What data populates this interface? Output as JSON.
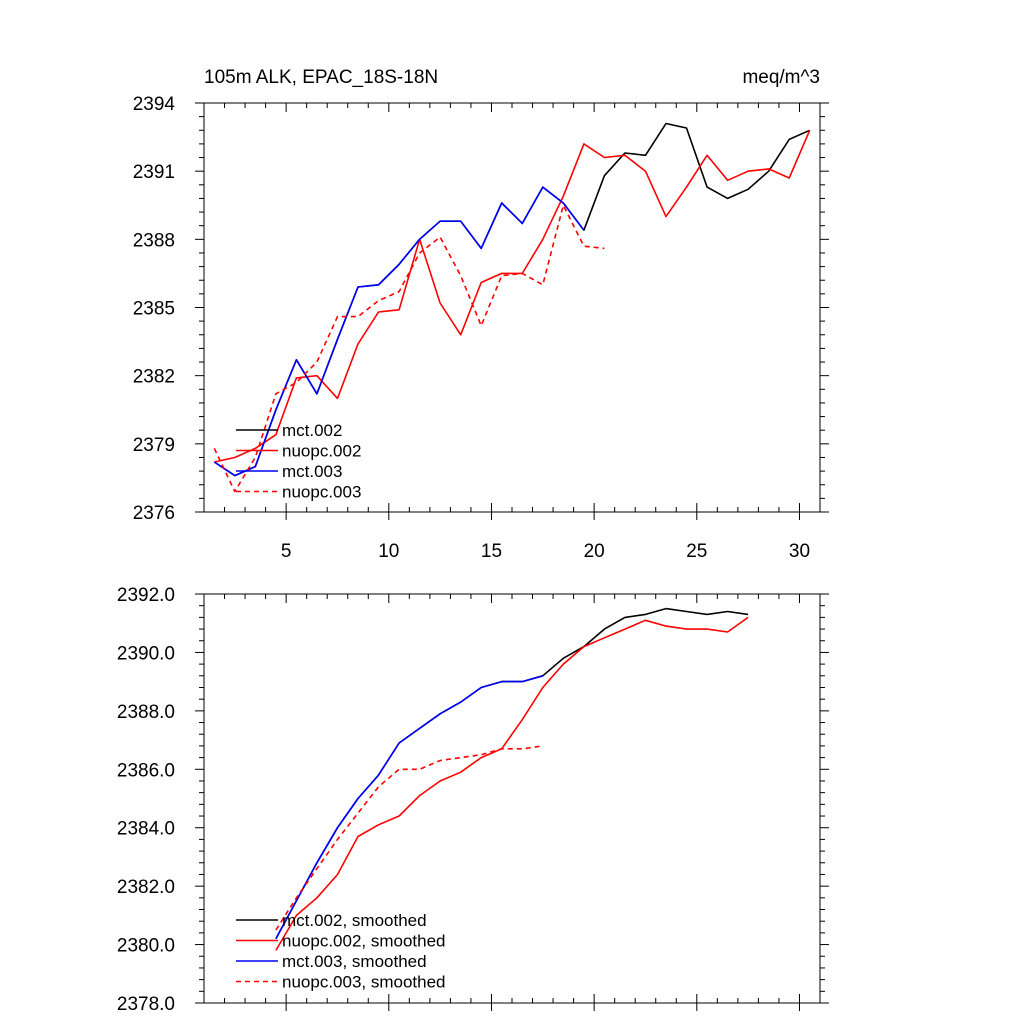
{
  "chart_data": [
    {
      "type": "line",
      "title": "105m ALK, EPAC_18S-18N",
      "units": "meq/m^3",
      "xlim": [
        1,
        31
      ],
      "ylim": [
        2376,
        2394
      ],
      "x_ticks": [
        5,
        10,
        15,
        20,
        25,
        30
      ],
      "y_ticks": [
        2376,
        2379,
        2382,
        2385,
        2388,
        2391,
        2394
      ],
      "y_tick_labels": [
        "2376",
        "2379",
        "2382",
        "2385",
        "2388",
        "2391",
        "2394"
      ],
      "legend_position": "bottom-left",
      "grid": false,
      "series": [
        {
          "name": "mct.002",
          "color": "#000000",
          "dash": "solid",
          "x": [
            1.5,
            2.5,
            3.5,
            4.5,
            5.5,
            6.5,
            7.5,
            8.5,
            9.5,
            10.5,
            11.5,
            12.5,
            13.5,
            14.5,
            15.5,
            16.5,
            17.5,
            18.5,
            19.5,
            20.5,
            21.5,
            22.5,
            23.5,
            24.5,
            25.5,
            26.5,
            27.5,
            28.5,
            29.5,
            30.5
          ],
          "values": [
            2378.2,
            2377.6,
            2378.0,
            2380.5,
            2382.7,
            2381.2,
            2383.6,
            2385.9,
            2386.0,
            2386.9,
            2388.0,
            2388.8,
            2388.8,
            2387.6,
            2389.6,
            2388.7,
            2390.3,
            2389.6,
            2388.4,
            2390.8,
            2391.8,
            2391.7,
            2393.1,
            2392.9,
            2390.3,
            2389.8,
            2390.2,
            2391.0,
            2392.4,
            2392.8
          ]
        },
        {
          "name": "nuopc.002",
          "color": "#ff0000",
          "dash": "solid",
          "x": [
            1.5,
            2.5,
            3.5,
            4.5,
            5.5,
            6.5,
            7.5,
            8.5,
            9.5,
            10.5,
            11.5,
            12.5,
            13.5,
            14.5,
            15.5,
            16.5,
            17.5,
            18.5,
            19.5,
            20.5,
            21.5,
            22.5,
            23.5,
            24.5,
            25.5,
            26.5,
            27.5,
            28.5,
            29.5,
            30.5
          ],
          "values": [
            2378.2,
            2378.4,
            2378.8,
            2379.4,
            2381.9,
            2382.0,
            2381.0,
            2383.4,
            2384.8,
            2384.9,
            2388.0,
            2385.2,
            2383.8,
            2386.1,
            2386.5,
            2386.5,
            2388.0,
            2389.9,
            2392.2,
            2391.6,
            2391.7,
            2391.0,
            2389.0,
            2390.3,
            2391.7,
            2390.6,
            2391.0,
            2391.1,
            2390.7,
            2392.8
          ]
        },
        {
          "name": "mct.003",
          "color": "#0000ff",
          "dash": "solid",
          "x": [
            1.5,
            2.5,
            3.5,
            4.5,
            5.5,
            6.5,
            7.5,
            8.5,
            9.5,
            10.5,
            11.5,
            12.5,
            13.5,
            14.5,
            15.5,
            16.5,
            17.5,
            18.5,
            19.5
          ],
          "values": [
            2378.2,
            2377.6,
            2378.0,
            2380.5,
            2382.7,
            2381.2,
            2383.6,
            2385.9,
            2386.0,
            2386.9,
            2388.0,
            2388.8,
            2388.8,
            2387.6,
            2389.6,
            2388.7,
            2390.3,
            2389.6,
            2388.4
          ]
        },
        {
          "name": "nuopc.003",
          "color": "#ff0000",
          "dash": "dashed",
          "x": [
            1.5,
            2.5,
            3.5,
            4.5,
            5.5,
            6.5,
            7.5,
            8.5,
            9.5,
            10.5,
            11.5,
            12.5,
            13.5,
            14.5,
            15.5,
            16.5,
            17.5,
            18.5,
            19.5,
            20.5
          ],
          "values": [
            2378.8,
            2376.9,
            2378.4,
            2381.2,
            2381.7,
            2382.6,
            2384.6,
            2384.6,
            2385.3,
            2385.7,
            2387.4,
            2388.1,
            2386.4,
            2384.2,
            2386.4,
            2386.5,
            2386.0,
            2389.5,
            2387.7,
            2387.6
          ]
        }
      ]
    },
    {
      "type": "line",
      "xlim": [
        1,
        31
      ],
      "ylim": [
        2378,
        2392
      ],
      "x_ticks": [
        5,
        10,
        15,
        20,
        25,
        30
      ],
      "y_ticks": [
        2378,
        2380,
        2382,
        2384,
        2386,
        2388,
        2390,
        2392
      ],
      "y_tick_labels": [
        "2378.0",
        "2380.0",
        "2382.0",
        "2384.0",
        "2386.0",
        "2388.0",
        "2390.0",
        "2392.0"
      ],
      "legend_position": "bottom-left",
      "grid": false,
      "series": [
        {
          "name": "mct.002, smoothed",
          "color": "#000000",
          "dash": "solid",
          "x": [
            4.5,
            5.5,
            6.5,
            7.5,
            8.5,
            9.5,
            10.5,
            11.5,
            12.5,
            13.5,
            14.5,
            15.5,
            16.5,
            17.5,
            18.5,
            19.5,
            20.5,
            21.5,
            22.5,
            23.5,
            24.5,
            25.5,
            26.5,
            27.5
          ],
          "values": [
            2380.2,
            2381.5,
            2382.8,
            2384.0,
            2385.0,
            2385.8,
            2386.9,
            2387.4,
            2387.9,
            2388.3,
            2388.8,
            2389.0,
            2389.0,
            2389.2,
            2389.8,
            2390.2,
            2390.8,
            2391.2,
            2391.3,
            2391.5,
            2391.4,
            2391.3,
            2391.4,
            2391.3
          ]
        },
        {
          "name": "nuopc.002, smoothed",
          "color": "#ff0000",
          "dash": "solid",
          "x": [
            4.5,
            5.5,
            6.5,
            7.5,
            8.5,
            9.5,
            10.5,
            11.5,
            12.5,
            13.5,
            14.5,
            15.5,
            16.5,
            17.5,
            18.5,
            19.5,
            20.5,
            21.5,
            22.5,
            23.5,
            24.5,
            25.5,
            26.5,
            27.5
          ],
          "values": [
            2379.8,
            2381.0,
            2381.6,
            2382.4,
            2383.7,
            2384.1,
            2384.4,
            2385.1,
            2385.6,
            2385.9,
            2386.4,
            2386.7,
            2387.7,
            2388.8,
            2389.6,
            2390.2,
            2390.5,
            2390.8,
            2391.1,
            2390.9,
            2390.8,
            2390.8,
            2390.7,
            2391.2
          ]
        },
        {
          "name": "mct.003, smoothed",
          "color": "#0000ff",
          "dash": "solid",
          "x": [
            4.5,
            5.5,
            6.5,
            7.5,
            8.5,
            9.5,
            10.5,
            11.5,
            12.5,
            13.5,
            14.5,
            15.5,
            16.5,
            17.5
          ],
          "values": [
            2380.2,
            2381.5,
            2382.8,
            2384.0,
            2385.0,
            2385.8,
            2386.9,
            2387.4,
            2387.9,
            2388.3,
            2388.8,
            2389.0,
            2389.0,
            2389.2
          ]
        },
        {
          "name": "nuopc.003, smoothed",
          "color": "#ff0000",
          "dash": "dashed",
          "x": [
            4.5,
            5.5,
            6.5,
            7.5,
            8.5,
            9.5,
            10.5,
            11.5,
            12.5,
            13.5,
            14.5,
            15.5,
            16.5,
            17.5
          ],
          "values": [
            2380.5,
            2381.6,
            2382.6,
            2383.6,
            2384.5,
            2385.4,
            2386.0,
            2386.0,
            2386.3,
            2386.4,
            2386.5,
            2386.7,
            2386.7,
            2386.8
          ]
        }
      ]
    }
  ]
}
